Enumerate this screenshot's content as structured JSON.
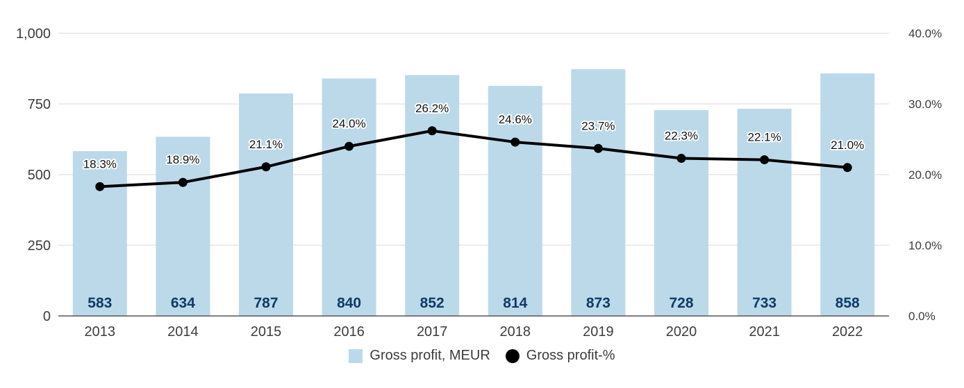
{
  "chart_data": {
    "type": "bar",
    "categories": [
      "2013",
      "2014",
      "2015",
      "2016",
      "2017",
      "2018",
      "2019",
      "2020",
      "2021",
      "2022"
    ],
    "series": [
      {
        "name": "Gross profit, MEUR",
        "type": "bar",
        "axis": "left",
        "values": [
          583,
          634,
          787,
          840,
          852,
          814,
          873,
          728,
          733,
          858
        ],
        "labels": [
          "583",
          "634",
          "787",
          "840",
          "852",
          "814",
          "873",
          "728",
          "733",
          "858"
        ],
        "color": "#bcd9ea",
        "label_color": "#0d3b66"
      },
      {
        "name": "Gross profit-%",
        "type": "line",
        "axis": "right",
        "values": [
          18.3,
          18.9,
          21.1,
          24.0,
          26.2,
          24.6,
          23.7,
          22.3,
          22.1,
          21.0
        ],
        "labels": [
          "18.3%",
          "18.9%",
          "21.1%",
          "24.0%",
          "26.2%",
          "24.6%",
          "23.7%",
          "22.3%",
          "22.1%",
          "21.0%"
        ],
        "color": "#000000"
      }
    ],
    "y_left": {
      "ylim": [
        0,
        1000
      ],
      "ticks": [
        0,
        250,
        500,
        750,
        1000
      ],
      "tick_labels": [
        "0",
        "250",
        "500",
        "750",
        "1,000"
      ]
    },
    "y_right": {
      "ylim": [
        0,
        40
      ],
      "ticks": [
        0,
        10,
        20,
        30,
        40
      ],
      "tick_labels": [
        "0.0%",
        "10.0%",
        "20.0%",
        "30.0%",
        "40.0%"
      ]
    },
    "grid": true,
    "legend_position": "bottom",
    "title": "",
    "xlabel": "",
    "ylabel": ""
  },
  "legend": {
    "bar_label": "Gross profit, MEUR",
    "line_label": "Gross profit-%"
  }
}
